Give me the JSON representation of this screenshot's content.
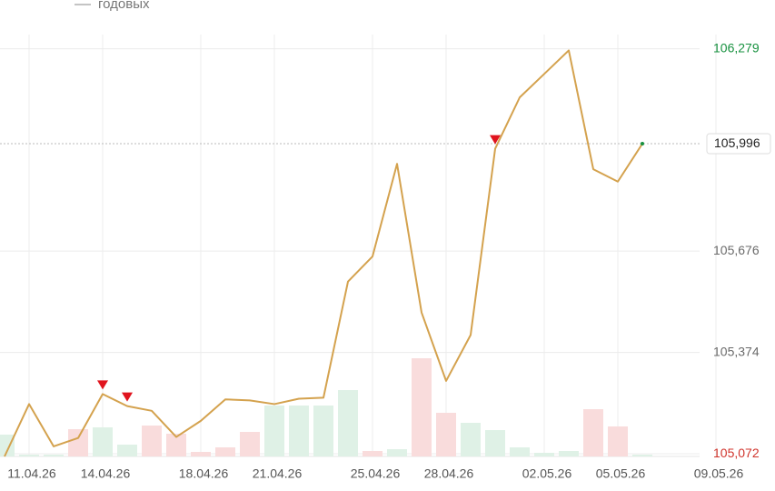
{
  "chart_data": {
    "type": "line",
    "categories": [
      null,
      "11.04.26",
      null,
      null,
      "14.04.26",
      null,
      null,
      null,
      "18.04.26",
      null,
      null,
      "21.04.26",
      null,
      null,
      null,
      "25.04.26",
      null,
      null,
      "28.04.26",
      null,
      null,
      null,
      "02.05.26",
      null,
      null,
      "05.05.26",
      null,
      null,
      null,
      "09.05.26"
    ],
    "series": [
      {
        "name": "годовых",
        "color": "#d4a24e",
        "values": [
          105.064,
          105.22,
          105.094,
          105.119,
          105.25,
          105.214,
          105.2,
          105.122,
          105.17,
          105.234,
          105.231,
          105.22,
          105.236,
          105.239,
          105.585,
          105.66,
          105.936,
          105.493,
          105.289,
          105.426,
          105.981,
          106.134,
          106.204,
          106.274,
          105.92,
          105.883,
          105.996,
          null,
          null,
          null
        ]
      },
      {
        "type": "bar",
        "axis": "y2",
        "values": [
          24,
          2,
          2,
          30,
          32,
          13,
          34,
          25,
          5,
          10,
          27,
          56,
          56,
          56,
          73,
          6,
          8,
          108,
          48,
          37,
          29,
          10,
          4,
          6,
          52,
          33,
          2,
          null,
          null,
          null
        ],
        "colors": [
          "#dff1e6",
          "#dff1e6",
          "#dff1e6",
          "#f9dcdc",
          "#dff1e6",
          "#dff1e6",
          "#f9dcdc",
          "#f9dcdc",
          "#f9dcdc",
          "#f9dcdc",
          "#f9dcdc",
          "#dff1e6",
          "#dff1e6",
          "#dff1e6",
          "#dff1e6",
          "#f9dcdc",
          "#dff1e6",
          "#f9dcdc",
          "#f9dcdc",
          "#dff1e6",
          "#dff1e6",
          "#dff1e6",
          "#dff1e6",
          "#dff1e6",
          "#f9dcdc",
          "#f9dcdc",
          "#dff1e6",
          "#dff1e6",
          "#dff1e6",
          "#dff1e6"
        ]
      }
    ],
    "ylim": [
      105.064,
      106.343
    ],
    "yticks": [
      {
        "value": 105.072,
        "label": "105,072"
      },
      {
        "value": 105.374,
        "label": "105,374"
      },
      {
        "value": 105.676,
        "label": "105,676"
      },
      {
        "value": 106.279,
        "label": "106,279"
      }
    ],
    "ytick_colors": [
      "#d0342c",
      "#6b6b6b",
      "#6b6b6b",
      "#17913f"
    ],
    "y2lim": [
      0,
      150
    ],
    "last_value": {
      "value": 105.996,
      "label": "105,996"
    },
    "signal_points": [
      4,
      5,
      20
    ],
    "signal_color": "#e0141e",
    "grid": true
  }
}
